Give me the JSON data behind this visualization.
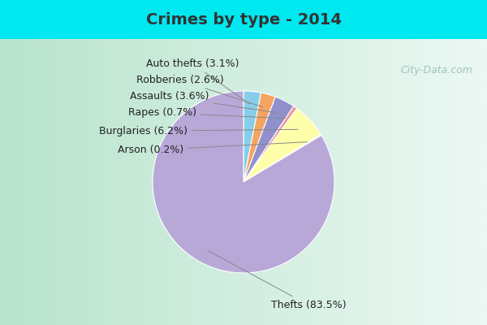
{
  "title": "Crimes by type - 2014",
  "pie_labels": [
    "Auto thefts",
    "Robberies",
    "Assaults",
    "Rapes",
    "Burglaries",
    "Arson",
    "Thefts"
  ],
  "pie_values": [
    3.1,
    2.6,
    3.6,
    0.7,
    6.2,
    0.2,
    83.5
  ],
  "pie_colors": [
    "#87ceeb",
    "#f4a460",
    "#9090cc",
    "#ee9999",
    "#ffffaa",
    "#c8ddc8",
    "#b8a8d8"
  ],
  "label_strings": [
    "Auto thefts (3.1%)",
    "Robberies (2.6%)",
    "Assaults (3.6%)",
    "Rapes (0.7%)",
    "Burglaries (6.2%)",
    "Arson (0.2%)",
    "Thefts (83.5%)"
  ],
  "title_fontsize": 14,
  "label_fontsize": 9,
  "watermark": "City-Data.com",
  "bg_cyan": "#00e8f0",
  "bg_body_left": "#b8e8c8",
  "bg_body_right": "#e8f4f0"
}
